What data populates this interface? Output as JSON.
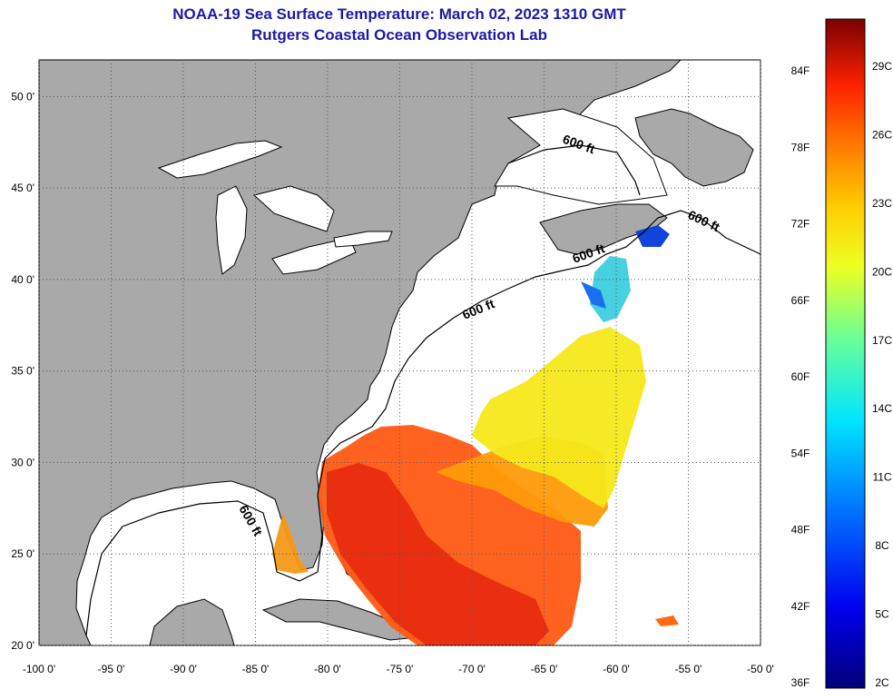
{
  "title": "NOAA-19 Sea Surface Temperature:  March 02, 2023 1310 GMT",
  "subtitle": "Rutgers Coastal Ocean Observation Lab",
  "axes": {
    "lon_ticks": [
      "-100 0'",
      "-95 0'",
      "-90 0'",
      "-85 0'",
      "-80 0'",
      "-75 0'",
      "-70 0'",
      "-65 0'",
      "-60 0'",
      "-55 0'",
      "-50 0'"
    ],
    "lat_ticks": [
      "20 0'",
      "25 0'",
      "30 0'",
      "35 0'",
      "40 0'",
      "45 0'",
      "50 0'"
    ],
    "lon_range": [
      -100,
      -50
    ],
    "lat_range": [
      20,
      52
    ],
    "grid": "dotted"
  },
  "contour_label": "600 ft",
  "colorbar": {
    "fahrenheit": [
      "84F",
      "78F",
      "72F",
      "66F",
      "60F",
      "54F",
      "48F",
      "42F",
      "36F"
    ],
    "celsius": [
      "29C",
      "26C",
      "23C",
      "20C",
      "17C",
      "14C",
      "11C",
      "8C",
      "5C",
      "2C"
    ],
    "colors": [
      "#800000",
      "#cc0000",
      "#ff2200",
      "#ff7700",
      "#ffbb00",
      "#ffff00",
      "#aaff33",
      "#33ffcc",
      "#00ddff",
      "#0088ff",
      "#0033ff",
      "#0000aa"
    ]
  },
  "colors": {
    "land": "#a9a9a9",
    "ocean": "#ffffff",
    "title": "#1a1aa6"
  }
}
